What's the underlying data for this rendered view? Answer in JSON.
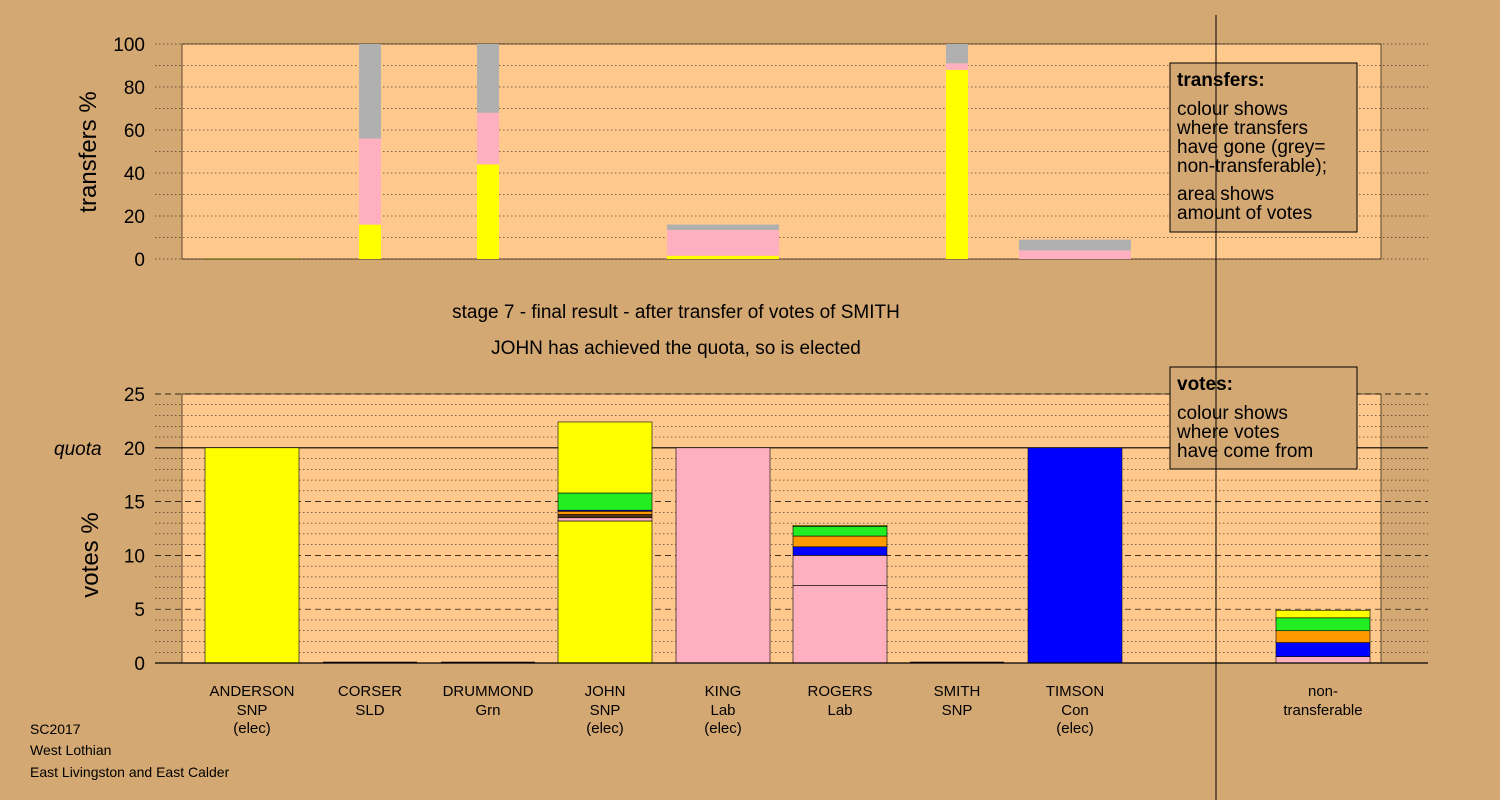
{
  "chart_data": [
    {
      "type": "bar",
      "id": "transfers",
      "ylabel": "transfers %",
      "ylim": [
        0,
        100
      ],
      "yticks": [
        0,
        20,
        40,
        60,
        80,
        100
      ],
      "legend": {
        "title": "transfers:",
        "lines": [
          "colour shows",
          "where transfers",
          "have gone (grey=",
          "non-transferable);",
          "area shows",
          "amount of votes"
        ]
      },
      "segment_order": [
        "yellow",
        "pink",
        "grey"
      ],
      "bars": [
        {
          "candidate": 0,
          "width": "narrow",
          "segments": {
            "yellow": 0.3,
            "pink": 0,
            "grey": 0
          }
        },
        {
          "candidate": 1,
          "width": "thin",
          "segments": {
            "yellow": 16,
            "pink": 40,
            "grey": 44
          }
        },
        {
          "candidate": 2,
          "width": "thin",
          "segments": {
            "yellow": 44,
            "pink": 24,
            "grey": 32
          }
        },
        {
          "candidate": 4,
          "width": "wide",
          "segments": {
            "yellow": 1.5,
            "pink": 12,
            "grey": 2.5
          }
        },
        {
          "candidate": 6,
          "width": "thin",
          "segments": {
            "yellow": 88,
            "pink": 3,
            "grey": 9
          }
        },
        {
          "candidate": 7,
          "width": "wide",
          "segments": {
            "yellow": 0,
            "pink": 4,
            "grey": 5
          }
        }
      ]
    },
    {
      "type": "bar",
      "id": "votes",
      "ylabel": "votes %",
      "ylim": [
        0,
        25
      ],
      "yticks": [
        0,
        5,
        10,
        15,
        20,
        25
      ],
      "quota": 20,
      "quota_label": "quota",
      "legend": {
        "title": "votes:",
        "lines": [
          "colour shows",
          "where votes",
          "have come from"
        ]
      },
      "candidates": [
        {
          "name": "ANDERSON",
          "party": "SNP",
          "status": "(elec)"
        },
        {
          "name": "CORSER",
          "party": "SLD",
          "status": ""
        },
        {
          "name": "DRUMMOND",
          "party": "Grn",
          "status": ""
        },
        {
          "name": "JOHN",
          "party": "SNP",
          "status": "(elec)"
        },
        {
          "name": "KING",
          "party": "Lab",
          "status": "(elec)"
        },
        {
          "name": "ROGERS",
          "party": "Lab",
          "status": ""
        },
        {
          "name": "SMITH",
          "party": "SNP",
          "status": ""
        },
        {
          "name": "TIMSON",
          "party": "Con",
          "status": "(elec)"
        },
        {
          "name": "non-",
          "party": "transferable",
          "status": ""
        }
      ],
      "stacks": [
        [
          {
            "value": 20,
            "color": "yellow"
          }
        ],
        [],
        [],
        [
          {
            "value": 13.2,
            "color": "yellow"
          },
          {
            "value": 0.3,
            "color": "pink"
          },
          {
            "value": 0.3,
            "color": "dark"
          },
          {
            "value": 0.3,
            "color": "orange"
          },
          {
            "value": 0.1,
            "color": "blue"
          },
          {
            "value": 1.6,
            "color": "green"
          },
          {
            "value": 6.6,
            "color": "yellow"
          }
        ],
        [
          {
            "value": 20,
            "color": "pink"
          }
        ],
        [
          {
            "value": 7.2,
            "color": "pink"
          },
          {
            "value": 2.8,
            "color": "pink"
          },
          {
            "value": 0.8,
            "color": "blue"
          },
          {
            "value": 1.0,
            "color": "orange"
          },
          {
            "value": 0.9,
            "color": "green"
          },
          {
            "value": 0.1,
            "color": "yellow"
          }
        ],
        [],
        [
          {
            "value": 20,
            "color": "blue"
          }
        ],
        [
          {
            "value": 0.6,
            "color": "pink"
          },
          {
            "value": 1.3,
            "color": "blue"
          },
          {
            "value": 1.1,
            "color": "orange"
          },
          {
            "value": 1.2,
            "color": "green"
          },
          {
            "value": 0.7,
            "color": "yellow"
          }
        ]
      ]
    }
  ],
  "stage_text": {
    "line1": "stage 7 - final result - after transfer of votes of SMITH",
    "line2": "JOHN has achieved the quota, so is elected"
  },
  "footer": {
    "line1": "SC2017",
    "line2": "West Lothian",
    "line3": "East Livingston and East Calder"
  },
  "colors": {
    "background": "#d4a873",
    "plot": "#ffc98d",
    "legend": "#d4a873",
    "yellow": "#ffff00",
    "pink": "#ffb0c0",
    "grey": "#b0b0b0",
    "blue": "#0000ff",
    "green": "#22ee22",
    "orange": "#ff9900",
    "dark": "#553311"
  }
}
